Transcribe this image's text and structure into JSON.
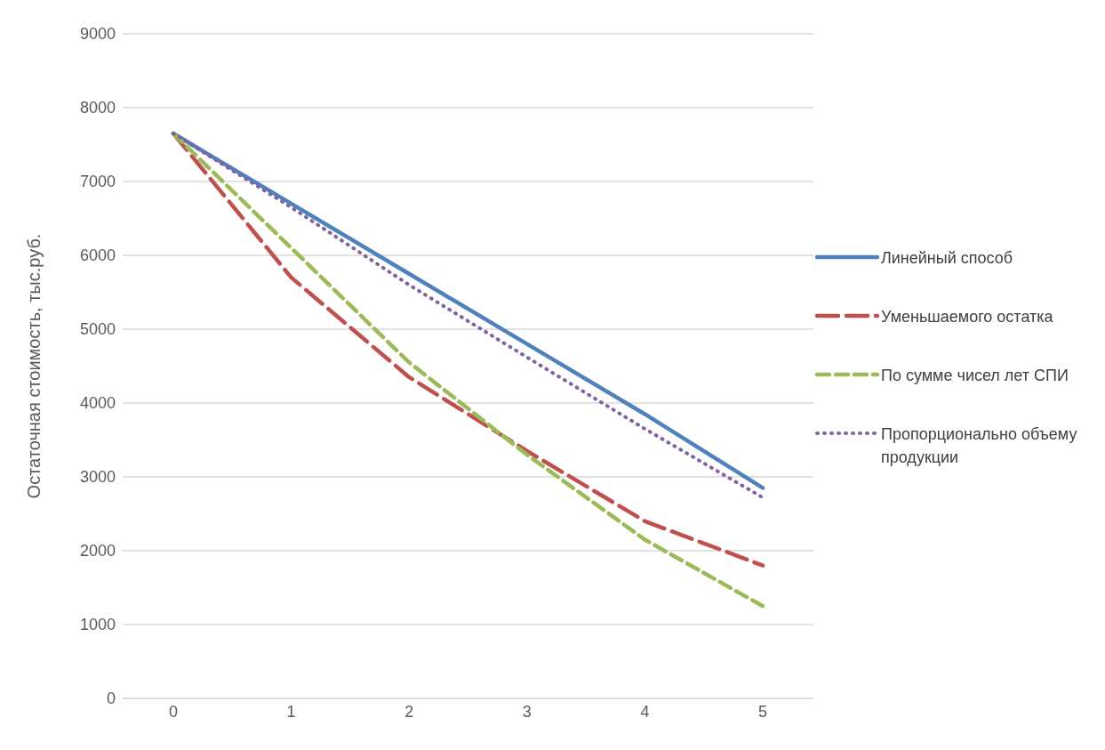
{
  "chart_data": {
    "type": "line",
    "ylabel": "Остаточная стоимость, тыс.руб.",
    "categories": [
      "0",
      "1",
      "2",
      "3",
      "4",
      "5"
    ],
    "ylim": [
      0,
      9000
    ],
    "yticks": [
      0,
      1000,
      2000,
      3000,
      4000,
      5000,
      6000,
      7000,
      8000,
      9000
    ],
    "grid": "y",
    "legend": "right",
    "marker": "none",
    "series": [
      {
        "name": "Линейный способ",
        "color": "#4f81bd",
        "line_style": "solid",
        "values": [
          7650,
          6700,
          5750,
          4800,
          3850,
          2850
        ]
      },
      {
        "name": "Уменьшаемого остатка",
        "color": "#c0504d",
        "line_style": "longdash",
        "values": [
          7650,
          5700,
          4350,
          3350,
          2400,
          1800
        ]
      },
      {
        "name": "По сумме чисел лет СПИ",
        "color": "#9bbb59",
        "line_style": "dashed",
        "values": [
          7650,
          6100,
          4550,
          3300,
          2150,
          1250
        ]
      },
      {
        "name": "Пропорционально объему продукции",
        "color": "#8064a2",
        "line_style": "dotted",
        "values": [
          7650,
          6650,
          5600,
          4620,
          3650,
          2720
        ]
      }
    ]
  }
}
